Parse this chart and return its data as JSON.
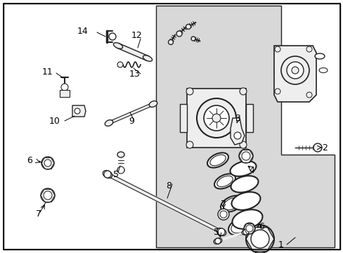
{
  "bg_color": "#ffffff",
  "fig_width": 4.89,
  "fig_height": 3.6,
  "dpi": 100,
  "lc": "#222222",
  "gray_fill": "#d8d8d8",
  "light_gray": "#eeeeee"
}
